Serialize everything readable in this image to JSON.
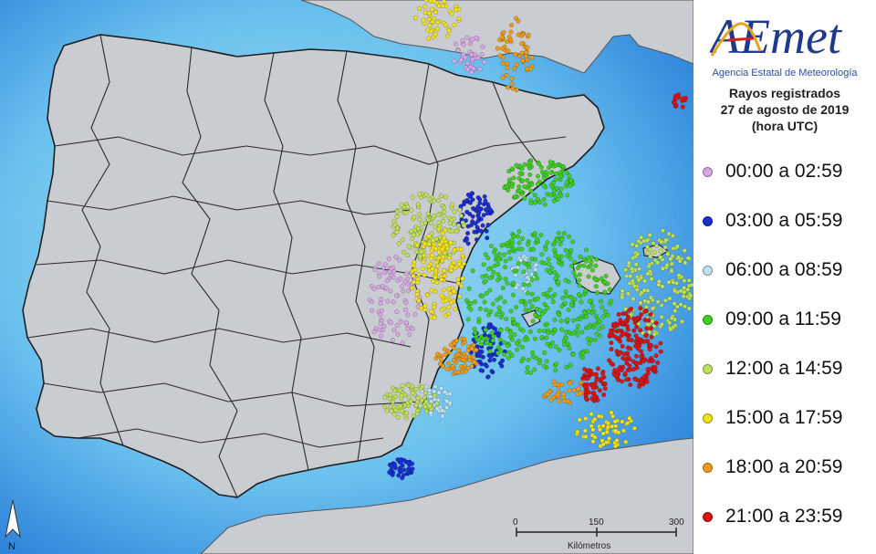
{
  "brand": {
    "logo_text": "AEmet",
    "agency_name": "Agencia Estatal de Meteorología"
  },
  "header": {
    "title_line1": "Rayos registrados",
    "title_line2": "27 de agosto de 2019",
    "title_line3": "(hora UTC)"
  },
  "legend": [
    {
      "label": "00:00 a 02:59",
      "color": "#d9a6e6"
    },
    {
      "label": "03:00 a 05:59",
      "color": "#1b2fd0"
    },
    {
      "label": "06:00 a 08:59",
      "color": "#bfe1f0"
    },
    {
      "label": "09:00 a 11:59",
      "color": "#3fcf22"
    },
    {
      "label": "12:00 a 14:59",
      "color": "#bfe05a"
    },
    {
      "label": "15:00 a 17:59",
      "color": "#f2e21a"
    },
    {
      "label": "18:00 a 20:59",
      "color": "#ee9b1a"
    },
    {
      "label": "21:00 a 23:59",
      "color": "#d91616"
    }
  ],
  "scale": {
    "ticks": [
      "0",
      "150",
      "300"
    ],
    "unit": "Kilómetros"
  },
  "north_label": "N",
  "colors": {
    "land": "#c9ccd0",
    "sea_shallow": "#8fd2ee",
    "sea_deep": "#1e7ad8",
    "borders": "#2a2a2a"
  }
}
